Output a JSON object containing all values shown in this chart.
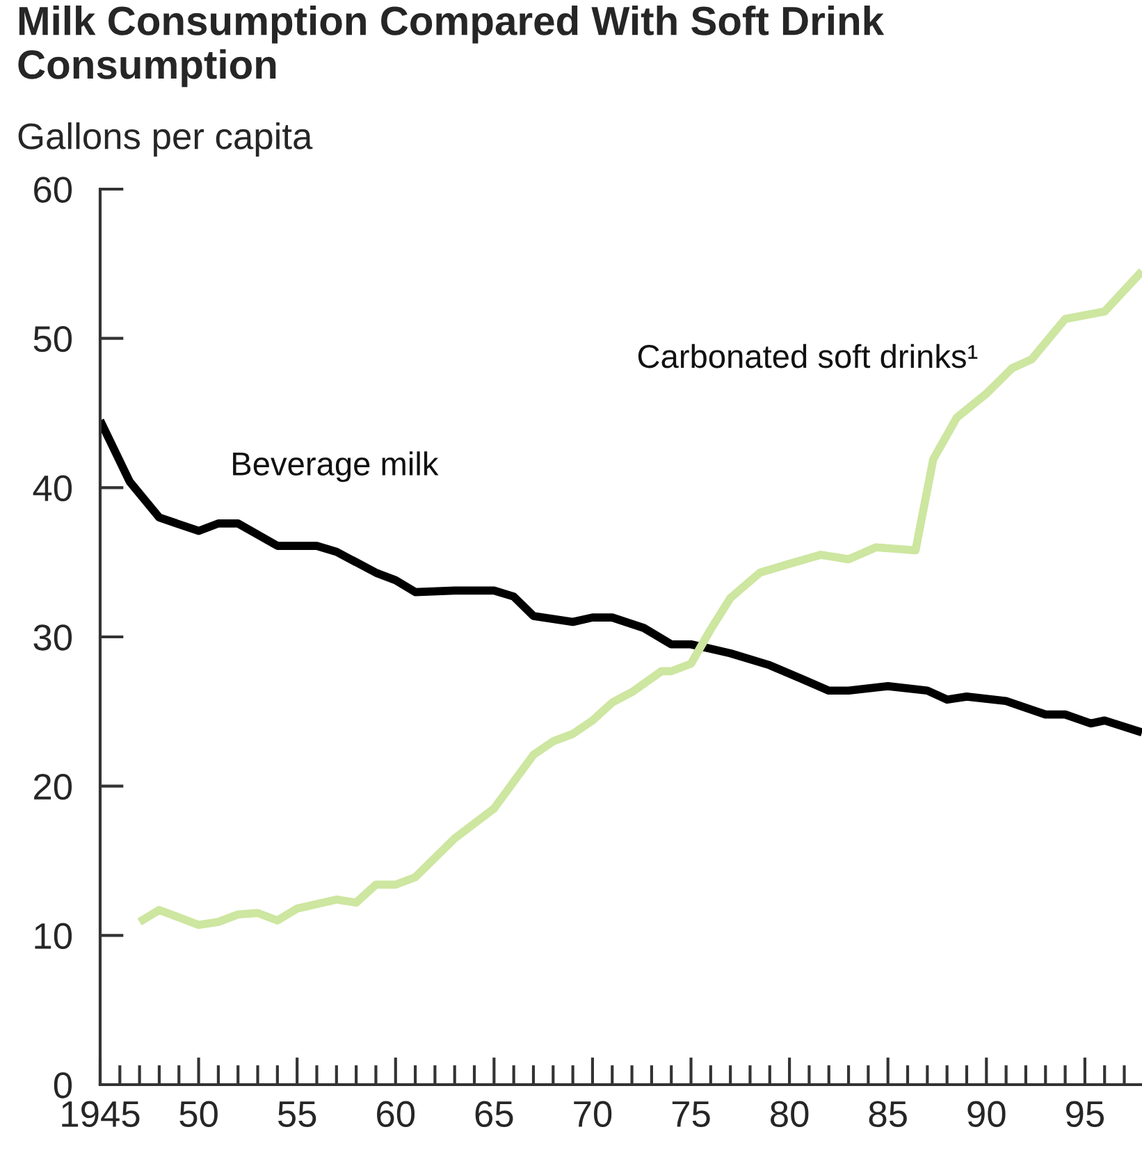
{
  "chart_data": {
    "type": "line",
    "title": "Milk Consumption Compared With Soft Drink Consumption",
    "ylabel": "Gallons per capita",
    "series": [
      {
        "name": "Beverage milk",
        "color": "#000000",
        "x": [
          1945,
          1946.5,
          1948,
          1950,
          1951,
          1952,
          1954,
          1956,
          1957,
          1959,
          1960,
          1961,
          1963,
          1965,
          1966,
          1967,
          1969,
          1970,
          1971,
          1972.6,
          1974,
          1975,
          1977,
          1979,
          1980.6,
          1982,
          1983,
          1985,
          1987,
          1988,
          1989,
          1991,
          1993,
          1994,
          1995.3,
          1996,
          1997.9
        ],
        "values": [
          44.5,
          40.4,
          38.0,
          37.1,
          37.6,
          37.6,
          36.1,
          36.1,
          35.7,
          34.3,
          33.8,
          33.0,
          33.1,
          33.1,
          32.7,
          31.4,
          31.0,
          31.3,
          31.3,
          30.6,
          29.5,
          29.5,
          28.9,
          28.1,
          27.2,
          26.4,
          26.4,
          26.7,
          26.4,
          25.8,
          26.0,
          25.7,
          24.8,
          24.8,
          24.2,
          24.4,
          23.6
        ]
      },
      {
        "name": "Carbonated soft drinks¹",
        "color": "#cde6a0",
        "x": [
          1947,
          1948,
          1950,
          1951,
          1952,
          1953,
          1954,
          1955,
          1957,
          1958,
          1959,
          1960,
          1961,
          1963,
          1965,
          1967,
          1968,
          1969,
          1970,
          1971,
          1972,
          1973.5,
          1974,
          1975,
          1976,
          1977,
          1978.5,
          1980,
          1981.6,
          1983,
          1984.4,
          1986.4,
          1987.3,
          1988.5,
          1990,
          1991.3,
          1992.3,
          1994,
          1996,
          1997.9
        ],
        "values": [
          10.9,
          11.7,
          10.7,
          10.9,
          11.4,
          11.5,
          11.0,
          11.8,
          12.4,
          12.2,
          13.4,
          13.4,
          13.9,
          16.5,
          18.5,
          22.1,
          23.0,
          23.5,
          24.4,
          25.6,
          26.3,
          27.7,
          27.7,
          28.2,
          30.5,
          32.6,
          34.3,
          34.9,
          35.5,
          35.2,
          36.0,
          35.8,
          41.9,
          44.7,
          46.3,
          48.0,
          48.6,
          51.3,
          51.8,
          54.5
        ]
      }
    ],
    "xlim": [
      1945,
      1997.9
    ],
    "xticks": [
      1945,
      {
        "value": 1946,
        "label": null
      },
      {
        "value": 1947,
        "label": null
      },
      {
        "value": 1948,
        "label": null
      },
      {
        "value": 1949,
        "label": null
      },
      {
        "value": 1950,
        "label": "50"
      },
      {
        "value": 1951,
        "label": null
      },
      {
        "value": 1952,
        "label": null
      },
      {
        "value": 1953,
        "label": null
      },
      {
        "value": 1954,
        "label": null
      },
      {
        "value": 1955,
        "label": "55"
      },
      {
        "value": 1956,
        "label": null
      },
      {
        "value": 1957,
        "label": null
      },
      {
        "value": 1958,
        "label": null
      },
      {
        "value": 1959,
        "label": null
      },
      {
        "value": 1960,
        "label": "60"
      },
      {
        "value": 1961,
        "label": null
      },
      {
        "value": 1962,
        "label": null
      },
      {
        "value": 1963,
        "label": null
      },
      {
        "value": 1964,
        "label": null
      },
      {
        "value": 1965,
        "label": "65"
      },
      {
        "value": 1966,
        "label": null
      },
      {
        "value": 1967,
        "label": null
      },
      {
        "value": 1968,
        "label": null
      },
      {
        "value": 1969,
        "label": null
      },
      {
        "value": 1970,
        "label": "70"
      },
      {
        "value": 1971,
        "label": null
      },
      {
        "value": 1972,
        "label": null
      },
      {
        "value": 1973,
        "label": null
      },
      {
        "value": 1974,
        "label": null
      },
      {
        "value": 1975,
        "label": "75"
      },
      {
        "value": 1976,
        "label": null
      },
      {
        "value": 1977,
        "label": null
      },
      {
        "value": 1978,
        "label": null
      },
      {
        "value": 1979,
        "label": null
      },
      {
        "value": 1980,
        "label": "80"
      },
      {
        "value": 1981,
        "label": null
      },
      {
        "value": 1982,
        "label": null
      },
      {
        "value": 1983,
        "label": null
      },
      {
        "value": 1984,
        "label": null
      },
      {
        "value": 1985,
        "label": "85"
      },
      {
        "value": 1986,
        "label": null
      },
      {
        "value": 1987,
        "label": null
      },
      {
        "value": 1988,
        "label": null
      },
      {
        "value": 1989,
        "label": null
      },
      {
        "value": 1990,
        "label": "90"
      },
      {
        "value": 1991,
        "label": null
      },
      {
        "value": 1992,
        "label": null
      },
      {
        "value": 1993,
        "label": null
      },
      {
        "value": 1994,
        "label": null
      },
      {
        "value": 1995,
        "label": "95"
      },
      {
        "value": 1996,
        "label": null
      },
      {
        "value": 1997,
        "label": null
      }
    ],
    "ylim": [
      0,
      60
    ],
    "yticks": [
      0,
      10,
      20,
      30,
      40,
      50,
      60
    ],
    "grid": false,
    "legend": false,
    "marker": "none",
    "line_style": "solid"
  }
}
